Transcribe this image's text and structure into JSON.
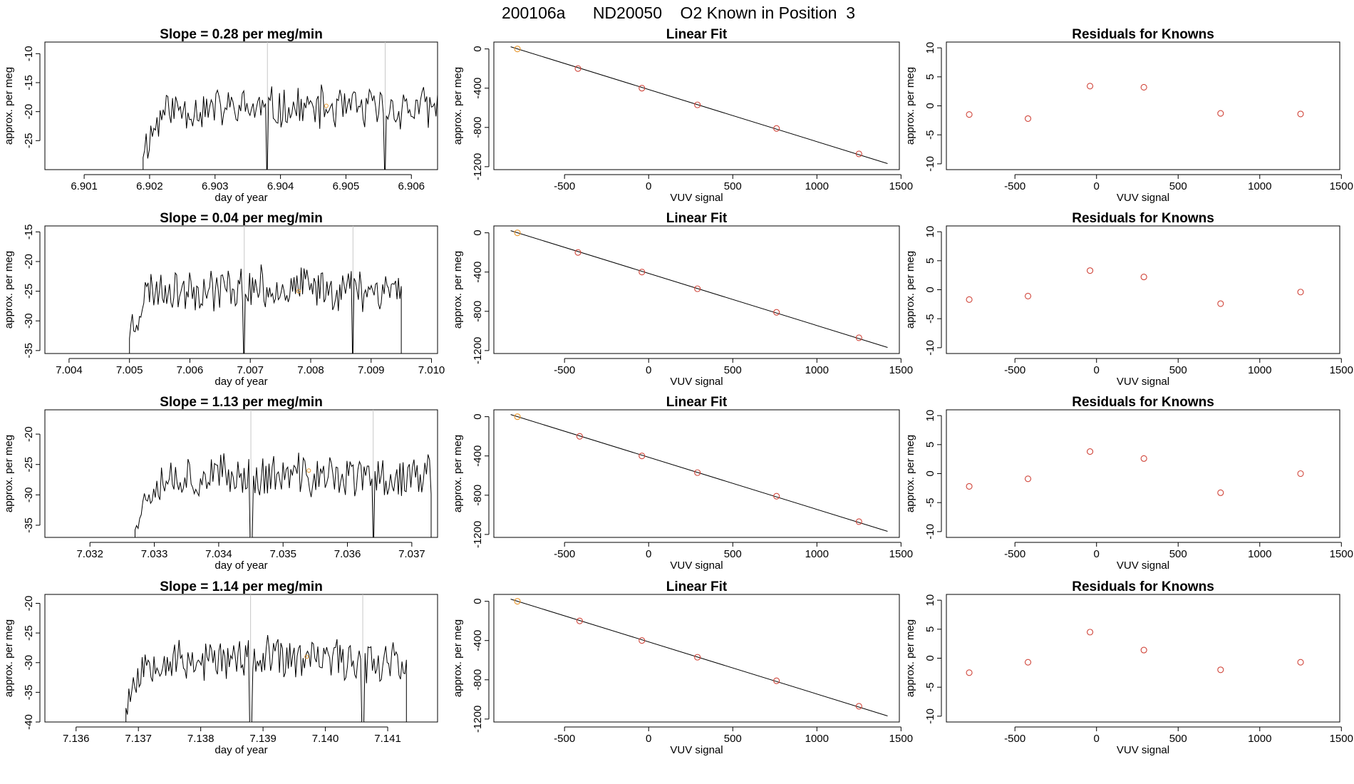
{
  "figure_title": "200106a      ND20050    O2 Known in Position  3",
  "colors": {
    "line": "#000000",
    "known_point": "#d0453a",
    "highlight_point": "#e8962b",
    "marker_line": "#c8c8c8",
    "fit_line": "#000000"
  },
  "chart_data": [
    {
      "type": "line",
      "panel": "time-series",
      "row": 1,
      "title": "Slope =  0.28  per meg/min",
      "xlabel": "day of year",
      "ylabel": "approx. per meg",
      "xlim": [
        6.9004,
        6.9064
      ],
      "ylim": [
        -30,
        -8
      ],
      "xticks": [
        6.901,
        6.902,
        6.903,
        6.904,
        6.905,
        6.906
      ],
      "xtick_labels": [
        "6.901",
        "6.902",
        "6.903",
        "6.904",
        "6.905",
        "6.906"
      ],
      "yticks": [
        -10,
        -15,
        -20,
        -25
      ],
      "data_start": 6.9019,
      "data_end": 6.9064,
      "markers_x": [
        6.9038,
        6.9056
      ],
      "highlight_point": {
        "x": 6.9047,
        "y": -19
      },
      "y_mean": -19.5,
      "y_amp": 3.6,
      "seed": 11
    },
    {
      "type": "scatter",
      "panel": "linear-fit",
      "row": 1,
      "title": "Linear Fit",
      "xlabel": "VUV signal",
      "ylabel": "approx. per meg",
      "xlim": [
        -920,
        1490
      ],
      "ylim": [
        -1230,
        70
      ],
      "xticks": [
        -500,
        0,
        500,
        1000,
        1500
      ],
      "yticks": [
        0,
        -400,
        -800,
        -1200
      ],
      "points_x": [
        -780,
        -420,
        -40,
        290,
        760,
        1250
      ],
      "points_y": [
        0,
        -200,
        -400,
        -570,
        -810,
        -1070
      ],
      "fit_line": {
        "x": [
          -820,
          1420
        ],
        "y": [
          22,
          -1168
        ]
      }
    },
    {
      "type": "scatter",
      "panel": "residuals",
      "row": 1,
      "title": "Residuals for Knowns",
      "xlabel": "VUV signal",
      "ylabel": "approx. per meg",
      "xlim": [
        -920,
        1490
      ],
      "ylim": [
        -11,
        11
      ],
      "xticks": [
        -500,
        0,
        500,
        1000,
        1500
      ],
      "yticks": [
        10,
        5,
        0,
        -5,
        -10
      ],
      "points_x": [
        -780,
        -420,
        -40,
        290,
        760,
        1250
      ],
      "points_y": [
        -1.5,
        -2.2,
        3.4,
        3.2,
        -1.3,
        -1.4
      ]
    },
    {
      "type": "line",
      "panel": "time-series",
      "row": 2,
      "title": "Slope =  0.04  per meg/min",
      "xlabel": "day of year",
      "ylabel": "approx. per meg",
      "xlim": [
        7.0036,
        7.0101
      ],
      "ylim": [
        -35.5,
        -14
      ],
      "xticks": [
        7.004,
        7.005,
        7.006,
        7.007,
        7.008,
        7.009,
        7.01
      ],
      "xtick_labels": [
        "7.004",
        "7.005",
        "7.006",
        "7.007",
        "7.008",
        "7.009",
        "7.010"
      ],
      "yticks": [
        -15,
        -20,
        -25,
        -30,
        -35
      ],
      "data_start": 7.005,
      "data_end": 7.0095,
      "markers_x": [
        7.0069,
        7.0087
      ],
      "highlight_point": {
        "x": 7.0078,
        "y": -25
      },
      "y_mean": -24.5,
      "y_amp": 3.5,
      "seed": 23
    },
    {
      "type": "scatter",
      "panel": "linear-fit",
      "row": 2,
      "title": "Linear Fit",
      "xlabel": "VUV signal",
      "ylabel": "approx. per meg",
      "xlim": [
        -920,
        1490
      ],
      "ylim": [
        -1230,
        70
      ],
      "xticks": [
        -500,
        0,
        500,
        1000,
        1500
      ],
      "yticks": [
        0,
        -400,
        -800,
        -1200
      ],
      "points_x": [
        -780,
        -420,
        -40,
        290,
        760,
        1250
      ],
      "points_y": [
        0,
        -200,
        -400,
        -570,
        -810,
        -1070
      ],
      "fit_line": {
        "x": [
          -820,
          1420
        ],
        "y": [
          22,
          -1168
        ]
      }
    },
    {
      "type": "scatter",
      "panel": "residuals",
      "row": 2,
      "title": "Residuals for Knowns",
      "xlabel": "VUV signal",
      "ylabel": "approx. per meg",
      "xlim": [
        -920,
        1490
      ],
      "ylim": [
        -11,
        11
      ],
      "xticks": [
        -500,
        0,
        500,
        1000,
        1500
      ],
      "yticks": [
        10,
        5,
        0,
        -5,
        -10
      ],
      "points_x": [
        -780,
        -420,
        -40,
        290,
        760,
        1250
      ],
      "points_y": [
        -1.7,
        -1.1,
        3.3,
        2.2,
        -2.4,
        -0.4
      ]
    },
    {
      "type": "line",
      "panel": "time-series",
      "row": 3,
      "title": "Slope =  1.13  per meg/min",
      "xlabel": "day of year",
      "ylabel": "approx. per meg",
      "xlim": [
        7.0313,
        7.0374
      ],
      "ylim": [
        -37,
        -16
      ],
      "xticks": [
        7.032,
        7.033,
        7.034,
        7.035,
        7.036,
        7.037
      ],
      "xtick_labels": [
        "7.032",
        "7.033",
        "7.034",
        "7.035",
        "7.036",
        "7.037"
      ],
      "yticks": [
        -20,
        -25,
        -30,
        -35
      ],
      "data_start": 7.0327,
      "data_end": 7.0373,
      "markers_x": [
        7.0345,
        7.0364
      ],
      "highlight_point": {
        "x": 7.0354,
        "y": -26
      },
      "y_mean": -27,
      "y_amp": 3.6,
      "seed": 37
    },
    {
      "type": "scatter",
      "panel": "linear-fit",
      "row": 3,
      "title": "Linear Fit",
      "xlabel": "VUV signal",
      "ylabel": "approx. per meg",
      "xlim": [
        -920,
        1490
      ],
      "ylim": [
        -1230,
        70
      ],
      "xticks": [
        -500,
        0,
        500,
        1000,
        1500
      ],
      "yticks": [
        0,
        -400,
        -800,
        -1200
      ],
      "points_x": [
        -780,
        -410,
        -40,
        290,
        760,
        1250
      ],
      "points_y": [
        0,
        -200,
        -400,
        -570,
        -810,
        -1070
      ],
      "fit_line": {
        "x": [
          -820,
          1420
        ],
        "y": [
          22,
          -1168
        ]
      }
    },
    {
      "type": "scatter",
      "panel": "residuals",
      "row": 3,
      "title": "Residuals for Knowns",
      "xlabel": "VUV signal",
      "ylabel": "approx. per meg",
      "xlim": [
        -920,
        1490
      ],
      "ylim": [
        -11,
        11
      ],
      "xticks": [
        -500,
        0,
        500,
        1000,
        1500
      ],
      "yticks": [
        10,
        5,
        0,
        -5,
        -10
      ],
      "points_x": [
        -780,
        -420,
        -40,
        290,
        760,
        1250
      ],
      "points_y": [
        -2.2,
        -0.9,
        3.8,
        2.6,
        -3.3,
        0
      ]
    },
    {
      "type": "line",
      "panel": "time-series",
      "row": 4,
      "title": "Slope =  1.14  per meg/min",
      "xlabel": "day of year",
      "ylabel": "approx. per meg",
      "xlim": [
        7.1355,
        7.1418
      ],
      "ylim": [
        -40,
        -18.5
      ],
      "xticks": [
        7.136,
        7.137,
        7.138,
        7.139,
        7.14,
        7.141
      ],
      "xtick_labels": [
        "7.136",
        "7.137",
        "7.138",
        "7.139",
        "7.140",
        "7.141"
      ],
      "yticks": [
        -20,
        -25,
        -30,
        -35,
        -40
      ],
      "data_start": 7.1368,
      "data_end": 7.1413,
      "markers_x": [
        7.1388,
        7.1406
      ],
      "highlight_point": {
        "x": 7.1397,
        "y": -29
      },
      "y_mean": -29.5,
      "y_amp": 3.6,
      "seed": 53
    },
    {
      "type": "scatter",
      "panel": "linear-fit",
      "row": 4,
      "title": "Linear Fit",
      "xlabel": "VUV signal",
      "ylabel": "approx. per meg",
      "xlim": [
        -920,
        1490
      ],
      "ylim": [
        -1230,
        70
      ],
      "xticks": [
        -500,
        0,
        500,
        1000,
        1500
      ],
      "yticks": [
        0,
        -400,
        -800,
        -1200
      ],
      "points_x": [
        -780,
        -410,
        -40,
        290,
        760,
        1250
      ],
      "points_y": [
        0,
        -200,
        -400,
        -570,
        -810,
        -1070
      ],
      "fit_line": {
        "x": [
          -820,
          1420
        ],
        "y": [
          22,
          -1168
        ]
      }
    },
    {
      "type": "scatter",
      "panel": "residuals",
      "row": 4,
      "title": "Residuals for Knowns",
      "xlabel": "VUV signal",
      "ylabel": "approx. per meg",
      "xlim": [
        -920,
        1490
      ],
      "ylim": [
        -11,
        11
      ],
      "xticks": [
        -500,
        0,
        500,
        1000,
        1500
      ],
      "yticks": [
        10,
        5,
        0,
        -5,
        -10
      ],
      "points_x": [
        -780,
        -420,
        -40,
        290,
        760,
        1250
      ],
      "points_y": [
        -2.5,
        -0.7,
        4.5,
        1.4,
        -2.0,
        -0.7
      ]
    }
  ]
}
